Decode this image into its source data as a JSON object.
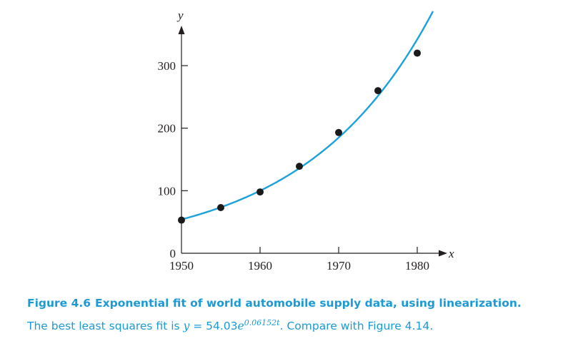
{
  "chart_data": {
    "type": "scatter",
    "title": "",
    "xlabel": "x",
    "ylabel": "y",
    "xlim": [
      1950,
      1982
    ],
    "ylim": [
      0,
      350
    ],
    "x_ticks": [
      1950,
      1960,
      1970,
      1980
    ],
    "y_ticks": [
      0,
      100,
      200,
      300
    ],
    "grid": false,
    "series": [
      {
        "points": [
          {
            "x": 1950,
            "y": 53
          },
          {
            "x": 1955,
            "y": 73
          },
          {
            "x": 1960,
            "y": 98
          },
          {
            "x": 1965,
            "y": 139
          },
          {
            "x": 1970,
            "y": 193
          },
          {
            "x": 1975,
            "y": 260
          },
          {
            "x": 1980,
            "y": 320
          }
        ],
        "color": "#1a1a1a"
      }
    ],
    "fit": {
      "model": "exponential",
      "a": 54.03,
      "k": 0.06152,
      "t_origin": 1950,
      "color": "#1ba1dc"
    }
  },
  "caption": {
    "label": "Figure 4.6",
    "title": "Exponential fit of world automobile supply data, using linearization.",
    "text_before": "The best least squares fit is ",
    "eq_lhs": "y",
    "eq_equals": " = ",
    "eq_coef": "54.03",
    "eq_base": "e",
    "eq_exp": "0.06152t",
    "text_after": ". Compare with Figure 4.14."
  }
}
